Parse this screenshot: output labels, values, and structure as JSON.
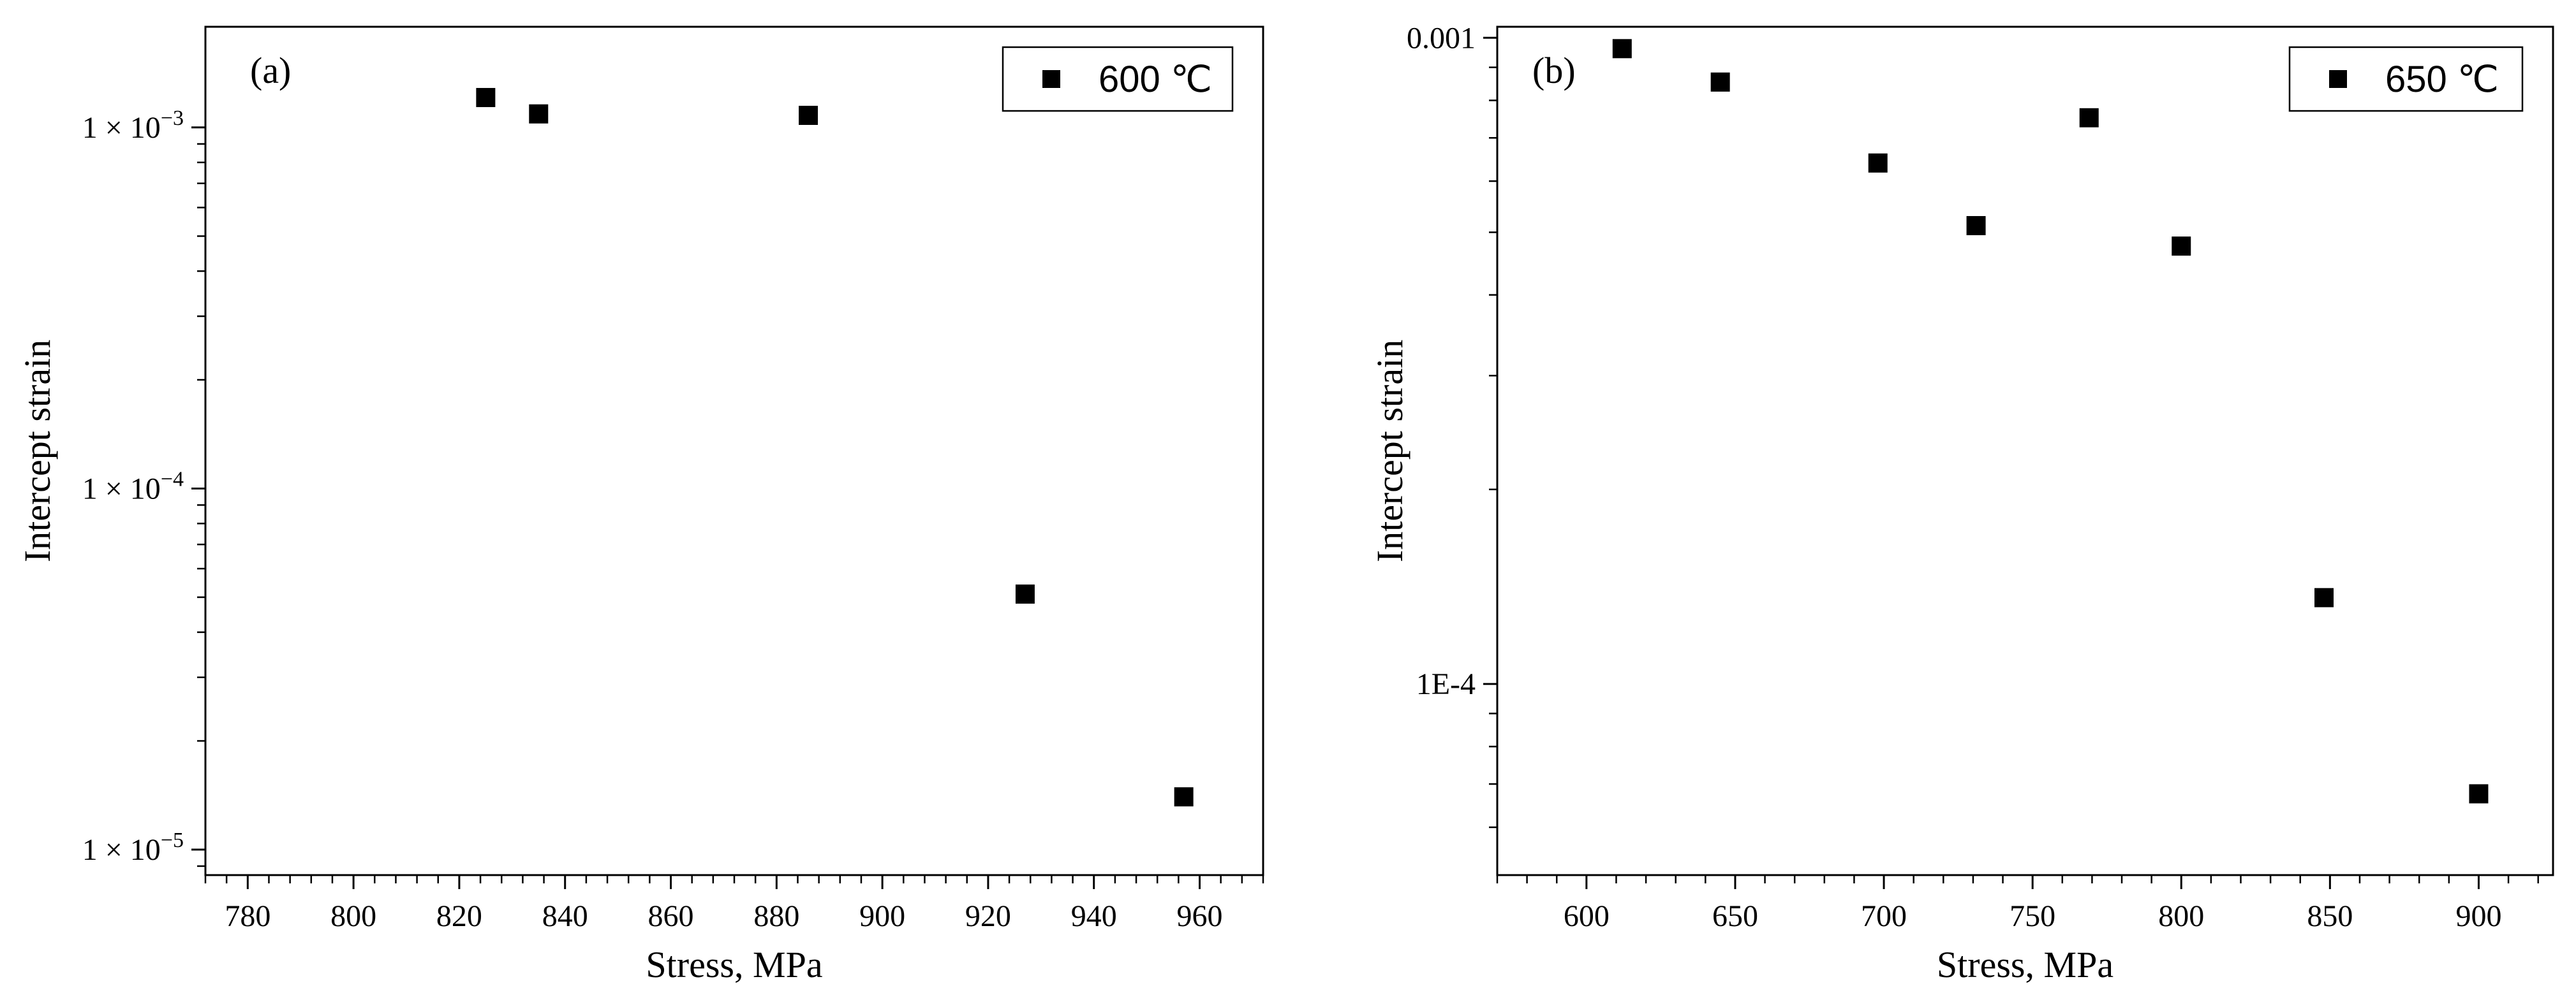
{
  "chart_data": [
    {
      "type": "scatter",
      "panel_label": "(a)",
      "xlabel": "Stress, MPa",
      "ylabel": "Intercept strain",
      "xlim": [
        772,
        972
      ],
      "ylim": [
        8.5e-06,
        0.0019
      ],
      "y_scale": "log",
      "x_ticks": [
        780,
        800,
        820,
        840,
        860,
        880,
        900,
        920,
        940,
        960
      ],
      "x_tick_labels": [
        "780",
        "800",
        "820",
        "840",
        "860",
        "880",
        "900",
        "920",
        "940",
        "960"
      ],
      "y_ticks": [
        1e-05,
        0.0001,
        0.001
      ],
      "y_tick_labels": [
        {
          "mantissa": "1 × 10",
          "exponent": "−5"
        },
        {
          "mantissa": "1 × 10",
          "exponent": "−4"
        },
        {
          "mantissa": "1 × 10",
          "exponent": "−3"
        }
      ],
      "series": [
        {
          "name": "600 ℃",
          "marker": "square",
          "color": "#000000",
          "x": [
            825,
            835,
            886,
            927,
            957
          ],
          "y": [
            0.00121,
            0.00109,
            0.00108,
            5.1e-05,
            1.4e-05
          ]
        }
      ],
      "legend": {
        "position": "top-right",
        "entries": [
          "600 ℃"
        ]
      },
      "grid": false
    },
    {
      "type": "scatter",
      "panel_label": "(b)",
      "xlabel": "Stress, MPa",
      "ylabel": "Intercept strain",
      "xlim": [
        570,
        925
      ],
      "ylim": [
        5.06e-05,
        0.00104
      ],
      "y_scale": "log",
      "x_ticks": [
        600,
        650,
        700,
        750,
        800,
        850,
        900
      ],
      "x_tick_labels": [
        "600",
        "650",
        "700",
        "750",
        "800",
        "850",
        "900"
      ],
      "y_ticks": [
        0.0001,
        0.001
      ],
      "y_tick_labels": [
        {
          "mantissa": "1E-4",
          "exponent": ""
        },
        {
          "mantissa": "0.001",
          "exponent": ""
        }
      ],
      "series": [
        {
          "name": "650 ℃",
          "marker": "square",
          "color": "#000000",
          "x": [
            612,
            645,
            698,
            731,
            769,
            800,
            848,
            900
          ],
          "y": [
            0.000962,
            0.000854,
            0.00064,
            0.000512,
            0.000752,
            0.000476,
            0.000136,
            6.76e-05
          ]
        }
      ],
      "legend": {
        "position": "top-right",
        "entries": [
          "650 ℃"
        ]
      },
      "grid": false
    }
  ]
}
